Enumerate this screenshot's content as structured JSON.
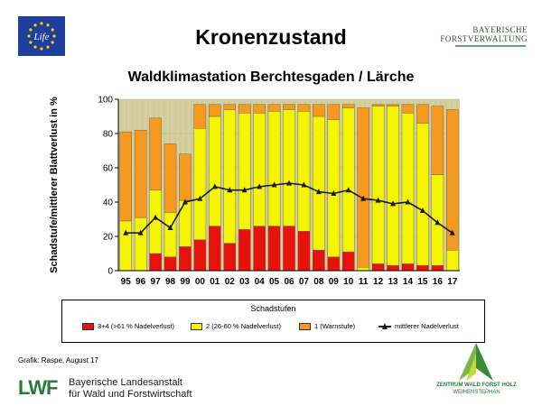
{
  "header": {
    "title": "Kronenzustand",
    "subtitle": "Waldklimastation Berchtesgaden / Lärche",
    "eu_logo_text": "Life",
    "forst_logo": {
      "line1": "BAYERISCHE",
      "line2": "FORSTVERWALTUNG"
    }
  },
  "footer": {
    "credit": "Grafik: Raspe, August 17",
    "lwf_mark": "LWF",
    "lwf_line1": "Bayerische Landesanstalt",
    "lwf_line2": "für Wald und Forstwirtschaft",
    "zwfh_line1": "ZENTRUM WALD FORST HOLZ",
    "zwfh_line2": "WEIHENSTEPHAN"
  },
  "colors": {
    "red": "#e8120c",
    "yellow": "#f5f500",
    "orange": "#f59a1e",
    "line": "#1a1a1a",
    "background": "#d6cfa0"
  },
  "chart_data": {
    "type": "bar",
    "stacked": true,
    "title": "Waldklimastation Berchtesgaden / Lärche",
    "ylabel": "Schadstufe/mittlerer Blattverlust in %",
    "xlabel": "",
    "ylim": [
      0,
      100
    ],
    "yticks": [
      0,
      20,
      40,
      60,
      80,
      100
    ],
    "categories": [
      "95",
      "96",
      "97",
      "98",
      "99",
      "00",
      "01",
      "02",
      "03",
      "04",
      "05",
      "06",
      "07",
      "08",
      "09",
      "10",
      "11",
      "12",
      "13",
      "14",
      "15",
      "16",
      "17"
    ],
    "legend_title": "Schadstufen",
    "legend_position": "bottom",
    "series": [
      {
        "name": "3+4 (>61 % Nadelverlust)",
        "color": "#e8120c",
        "values": [
          0,
          0,
          10,
          8,
          14,
          18,
          26,
          16,
          24,
          26,
          26,
          26,
          23,
          12,
          8,
          11,
          0,
          4,
          3,
          4,
          3,
          3,
          0
        ]
      },
      {
        "name": "2 (26-60 % Nadelverlust)",
        "color": "#f5f500",
        "values": [
          29,
          31,
          37,
          26,
          27,
          65,
          64,
          78,
          68,
          66,
          67,
          68,
          70,
          78,
          80,
          84,
          2,
          92,
          93,
          88,
          83,
          53,
          12
        ]
      },
      {
        "name": "1 (Warnstufe)",
        "color": "#f59a1e",
        "values": [
          52,
          51,
          42,
          40,
          27,
          14,
          7,
          3,
          5,
          5,
          4,
          3,
          4,
          7,
          9,
          2,
          93,
          1,
          1,
          5,
          11,
          40,
          82
        ]
      }
    ],
    "line": {
      "name": "mittlerer Nadelverlust",
      "values": [
        22,
        22,
        31,
        25,
        40,
        42,
        49,
        47,
        47,
        49,
        50,
        51,
        50,
        46,
        45,
        47,
        42,
        41,
        39,
        40,
        35,
        28,
        22
      ]
    }
  }
}
